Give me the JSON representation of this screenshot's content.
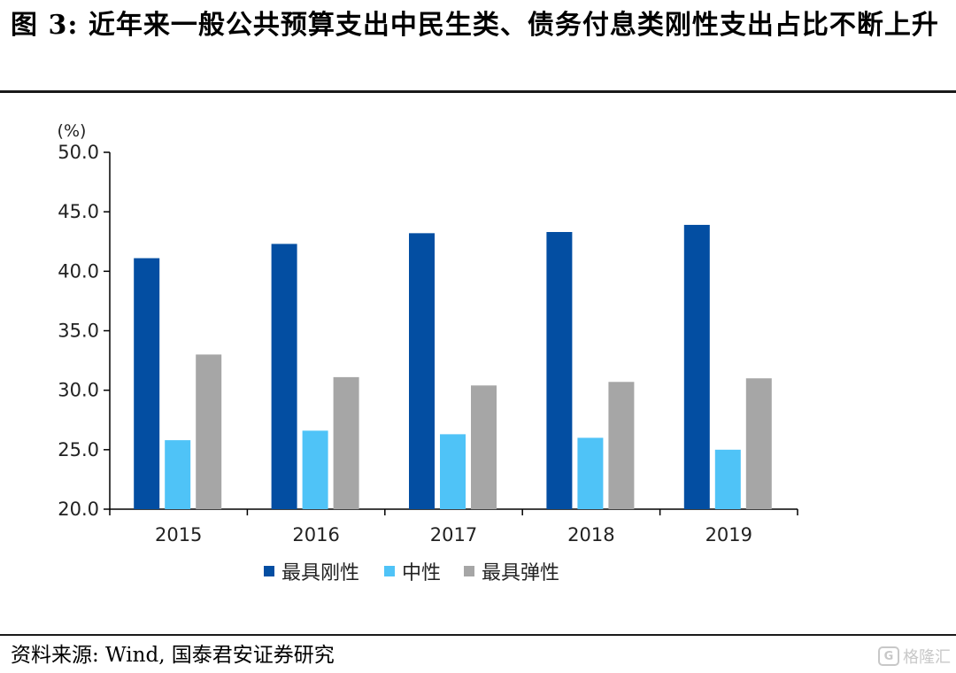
{
  "header": {
    "title": "图 3: 近年来一般公共预算支出中民生类、债务付息类刚性支出占比不断上升"
  },
  "chart_data": {
    "type": "bar",
    "title": "",
    "xlabel": "",
    "ylabel": "",
    "unit_label": "(%)",
    "categories": [
      "2015",
      "2016",
      "2017",
      "2018",
      "2019"
    ],
    "series": [
      {
        "name": "最具刚性",
        "color": "#034EA2",
        "values": [
          41.1,
          42.3,
          43.2,
          43.3,
          43.9
        ]
      },
      {
        "name": "中性",
        "color": "#4FC3F7",
        "values": [
          25.8,
          26.6,
          26.3,
          26.0,
          25.0
        ]
      },
      {
        "name": "最具弹性",
        "color": "#A6A6A6",
        "values": [
          33.0,
          31.1,
          30.4,
          30.7,
          31.0
        ]
      }
    ],
    "ylim": [
      20.0,
      50.0
    ],
    "yticks": [
      "20.0",
      "25.0",
      "30.0",
      "35.0",
      "40.0",
      "45.0",
      "50.0"
    ],
    "grid": false,
    "legend_position": "bottom-center"
  },
  "footer": {
    "source": "资料来源: Wind, 国泰君安证券研究",
    "watermark_badge": "G",
    "watermark_text": "格隆汇"
  }
}
